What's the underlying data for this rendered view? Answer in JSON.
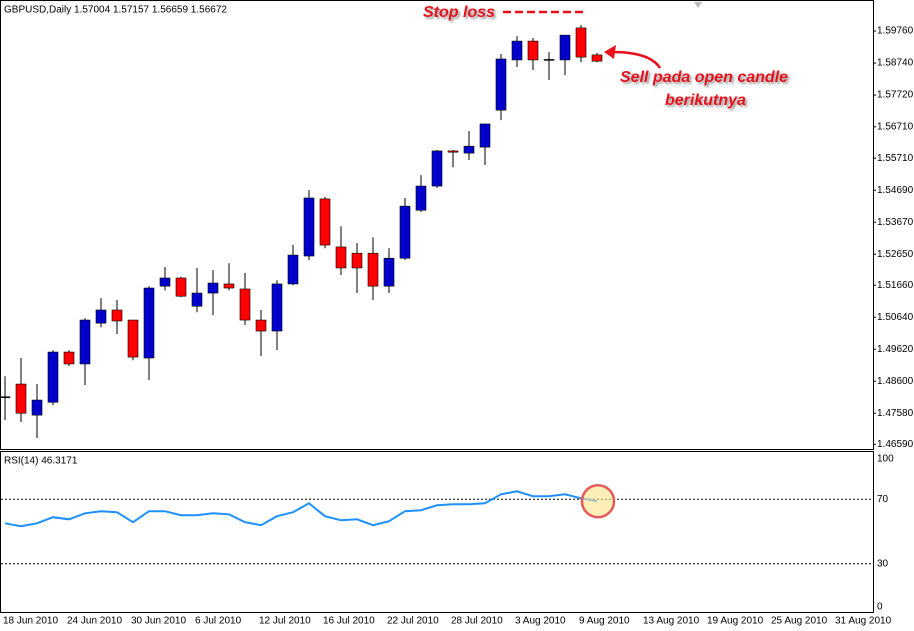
{
  "chart_data": [
    {
      "type": "candlestick",
      "title": "GBPUSD,Daily  1.57004 1.57157 1.56659 1.56672",
      "up_color": "#0000cc",
      "down_color": "#ff0000",
      "wick_color": "#000000",
      "categories": [
        "18 Jun 2010",
        null,
        null,
        null,
        "24 Jun 2010",
        null,
        null,
        null,
        "30 Jun 2010",
        null,
        null,
        null,
        "6 Jul 2010",
        null,
        null,
        null,
        "12 Jul 2010",
        null,
        null,
        null,
        "16 Jul 2010",
        null,
        null,
        null,
        "22 Jul 2010",
        null,
        null,
        null,
        "28 Jul 2010",
        null,
        null,
        null,
        "3 Aug 2010",
        null,
        null,
        null,
        "9 Aug 2010",
        null,
        null,
        null,
        "13 Aug 2010",
        null,
        null,
        null,
        "19 Aug 2010",
        null,
        null,
        null,
        "25 Aug 2010",
        null,
        null,
        null,
        "31 Aug 2010",
        null
      ],
      "open": [
        1.4809,
        1.4851,
        1.4752,
        1.4793,
        1.4953,
        1.4915,
        1.5045,
        1.5087,
        1.5055,
        1.4934,
        1.5163,
        1.5189,
        1.5099,
        1.5141,
        1.517,
        1.5154,
        1.5055,
        1.502,
        1.517,
        1.5259,
        1.5441,
        1.5288,
        1.5268,
        1.5268,
        1.5163,
        1.5252,
        1.5405,
        1.5482,
        1.5594,
        1.5587,
        1.5606,
        1.5724,
        1.5884,
        1.5944,
        1.5884,
        1.5884,
        1.5986,
        1.59,
        null,
        null,
        null,
        null,
        null,
        null,
        null,
        null,
        null,
        null,
        null,
        null,
        null,
        null,
        null,
        null
      ],
      "high": [
        1.4876,
        1.4934,
        1.4851,
        1.4959,
        1.4959,
        1.5061,
        1.5125,
        1.5119,
        1.5055,
        1.5163,
        1.5224,
        1.5192,
        1.5221,
        1.5214,
        1.5236,
        1.5205,
        1.5087,
        1.5182,
        1.5294,
        1.5469,
        1.5447,
        1.5354,
        1.53,
        1.5319,
        1.5284,
        1.5444,
        1.5517,
        1.5597,
        1.5597,
        1.5657,
        1.568,
        1.5903,
        1.596,
        1.5954,
        1.5909,
        1.5963,
        1.5995,
        1.5906,
        null,
        null,
        null,
        null,
        null,
        null,
        null,
        null,
        null,
        null,
        null,
        null,
        null,
        null,
        null,
        null
      ],
      "low": [
        1.4736,
        1.473,
        1.4679,
        1.4784,
        1.4908,
        1.4848,
        1.5032,
        1.501,
        1.4927,
        1.4864,
        1.515,
        1.5128,
        1.508,
        1.5071,
        1.515,
        1.5039,
        1.494,
        1.4959,
        1.5166,
        1.5246,
        1.5284,
        1.5198,
        1.5141,
        1.5119,
        1.5141,
        1.5246,
        1.5399,
        1.5476,
        1.5542,
        1.5565,
        1.5549,
        1.5692,
        1.5861,
        1.5852,
        1.582,
        1.5836,
        1.5877,
        1.5877,
        null,
        null,
        null,
        null,
        null,
        null,
        null,
        null,
        null,
        null,
        null,
        null,
        null,
        null,
        null,
        null
      ],
      "close": [
        1.4809,
        1.4758,
        1.48,
        1.4953,
        1.4915,
        1.5055,
        1.5087,
        1.5052,
        1.4937,
        1.5157,
        1.5189,
        1.5131,
        1.5141,
        1.5173,
        1.5157,
        1.5055,
        1.502,
        1.517,
        1.5262,
        1.5444,
        1.5294,
        1.5221,
        1.5221,
        1.5163,
        1.5252,
        1.5418,
        1.5482,
        1.5594,
        1.559,
        1.5609,
        1.568,
        1.5887,
        1.5944,
        1.5884,
        1.5884,
        1.5963,
        1.5893,
        1.588,
        null,
        null,
        null,
        null,
        null,
        null,
        null,
        null,
        null,
        null,
        null,
        null,
        null,
        null,
        null,
        null
      ],
      "ylim": [
        1.4644,
        1.6075
      ],
      "yticks": [
        {
          "value": 1.5976,
          "label": "1.59760"
        },
        {
          "value": 1.5874,
          "label": "1.58740"
        },
        {
          "value": 1.5772,
          "label": "1.57720"
        },
        {
          "value": 1.5671,
          "label": "1.56710"
        },
        {
          "value": 1.5571,
          "label": "1.55710"
        },
        {
          "value": 1.5469,
          "label": "1.54690"
        },
        {
          "value": 1.5367,
          "label": "1.53670"
        },
        {
          "value": 1.5265,
          "label": "1.52650"
        },
        {
          "value": 1.5166,
          "label": "1.51660"
        },
        {
          "value": 1.5064,
          "label": "1.50640"
        },
        {
          "value": 1.4962,
          "label": "1.49620"
        },
        {
          "value": 1.486,
          "label": "1.48600"
        },
        {
          "value": 1.4758,
          "label": "1.47580"
        },
        {
          "value": 1.4659,
          "label": "1.46590"
        }
      ],
      "annotations": [
        "Stop loss",
        "Sell pada open candle",
        "berikutnya"
      ]
    },
    {
      "type": "line",
      "title": "RSI(14) 46.3171",
      "color": "#1e90ff",
      "values": [
        55.1,
        53.3,
        55.1,
        58.9,
        57.6,
        61.3,
        62.6,
        62.0,
        55.8,
        62.6,
        62.6,
        60.1,
        60.1,
        61.3,
        60.7,
        55.8,
        53.9,
        59.5,
        62.0,
        67.5,
        59.5,
        57.0,
        57.6,
        53.9,
        56.4,
        62.6,
        63.2,
        66.3,
        66.9,
        66.9,
        67.5,
        73.1,
        75.0,
        71.9,
        71.9,
        73.1,
        70.6,
        68.8,
        null,
        null,
        null,
        null,
        null,
        null,
        null,
        null,
        null,
        null,
        null,
        null,
        null,
        null,
        null,
        null
      ],
      "ylim": [
        0,
        100
      ],
      "yticks": [
        100,
        70,
        30,
        0
      ]
    }
  ]
}
